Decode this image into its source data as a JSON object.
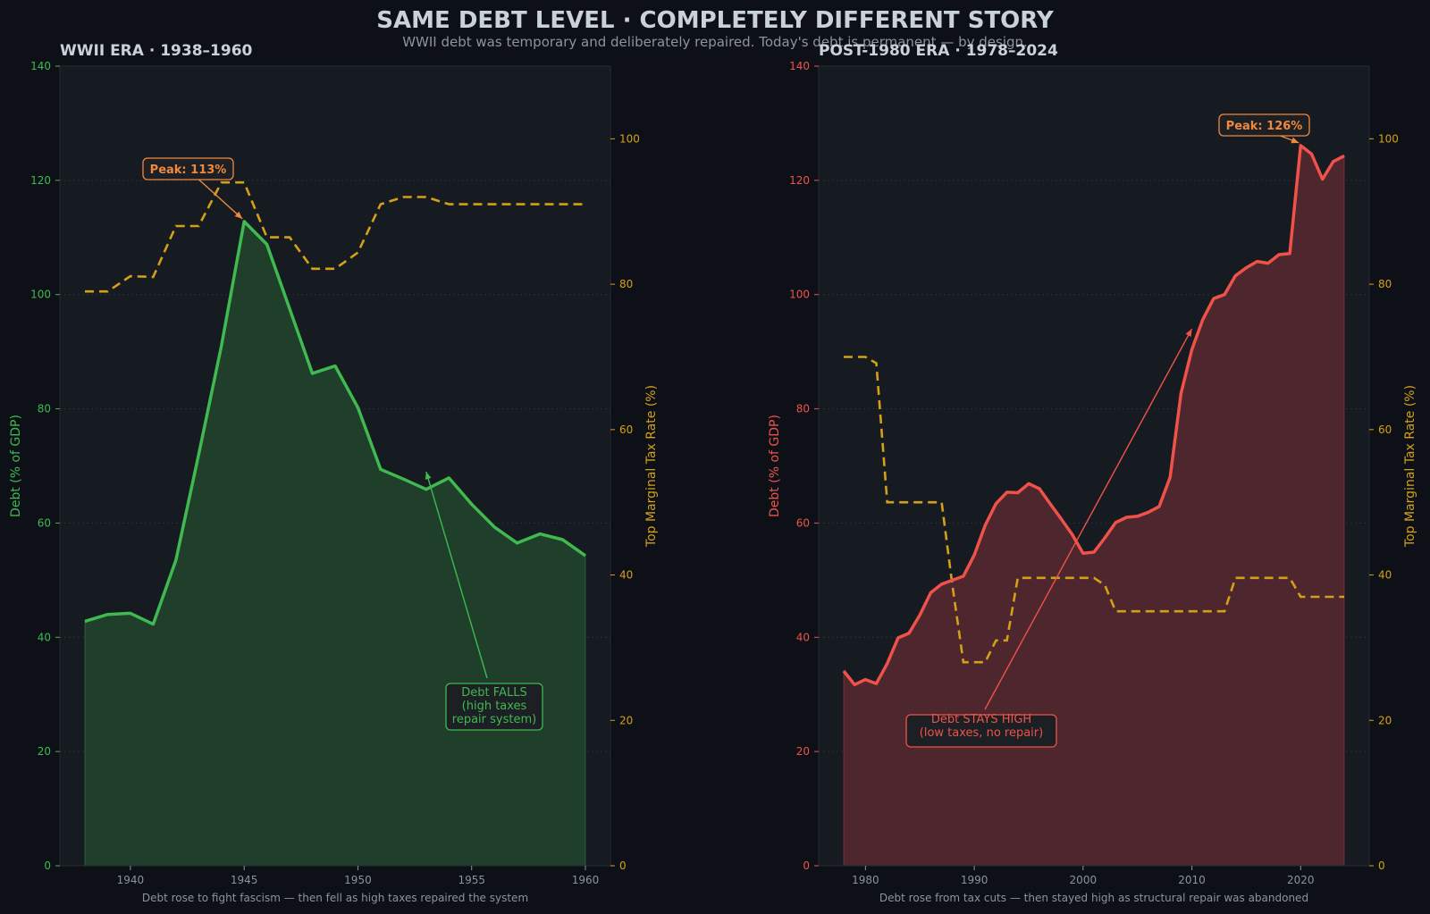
{
  "title": "SAME DEBT LEVEL  ·  COMPLETELY DIFFERENT STORY",
  "subtitle": "WWII debt was temporary and deliberately repaired. Today's debt is permanent — by design.",
  "colors": {
    "background": "#0d1117",
    "panel": "#161b22",
    "wwii_debt": "#3fb950",
    "modern_debt": "#f0524a",
    "tax": "#d4a017",
    "peak": "#f0883e",
    "text": "#c9d1d9",
    "muted": "#8b949e"
  },
  "chart_data": [
    {
      "type": "area",
      "title": "WWII ERA  ·  1938–1960",
      "caption": "Debt rose to fight fascism — then fell as high taxes repaired the system",
      "ylabel": "Debt (% of GDP)",
      "y2label": "Top Marginal Tax Rate (%)",
      "xlim": [
        1936.9,
        1961.1
      ],
      "xticks": [
        1940,
        1945,
        1950,
        1955,
        1960
      ],
      "ylim": [
        0,
        140
      ],
      "yticks": [
        0,
        20,
        40,
        60,
        80,
        100,
        120,
        140
      ],
      "y2lim": [
        0,
        110
      ],
      "y2ticks": [
        0,
        20,
        40,
        60,
        80,
        100
      ],
      "grid": true,
      "debt_series": {
        "x": [
          1938,
          1939,
          1940,
          1941,
          1942,
          1943,
          1944,
          1945,
          1946,
          1947,
          1948,
          1949,
          1950,
          1951,
          1952,
          1953,
          1954,
          1955,
          1956,
          1957,
          1958,
          1959,
          1960
        ],
        "values": [
          42.8,
          44.0,
          44.2,
          42.3,
          53.5,
          72.0,
          91.0,
          112.8,
          108.8,
          97.5,
          86.2,
          87.5,
          80.2,
          69.4,
          67.7,
          65.9,
          67.9,
          63.3,
          59.3,
          56.5,
          58.1,
          57.1,
          54.3
        ]
      },
      "tax_series": {
        "x": [
          1938,
          1939,
          1940,
          1941,
          1942,
          1943,
          1944,
          1945,
          1946,
          1947,
          1948,
          1949,
          1950,
          1951,
          1952,
          1953,
          1954,
          1955,
          1956,
          1957,
          1958,
          1959,
          1960
        ],
        "values": [
          79,
          79,
          81.1,
          81,
          88,
          88,
          94,
          94,
          86.45,
          86.45,
          82.13,
          82.13,
          84.36,
          91,
          92,
          92,
          91,
          91,
          91,
          91,
          91,
          91,
          91
        ]
      },
      "peak_label": "Peak: 113%",
      "peak_point": {
        "x": 1945,
        "y": 112.8
      },
      "trend_label_lines": [
        "Debt FALLS",
        "(high taxes",
        "repair system)"
      ],
      "trend_arrow_target": {
        "x": 1953,
        "y": 69
      }
    },
    {
      "type": "area",
      "title": "POST-1980 ERA  ·  1978–2024",
      "caption": "Debt rose from tax cuts — then stayed high as structural repair was abandoned",
      "ylabel": "Debt (% of GDP)",
      "y2label": "Top Marginal Tax Rate (%)",
      "xlim": [
        1975.7,
        2026.3
      ],
      "xticks": [
        1980,
        1990,
        2000,
        2010,
        2020
      ],
      "ylim": [
        0,
        140
      ],
      "yticks": [
        0,
        20,
        40,
        60,
        80,
        100,
        120,
        140
      ],
      "y2lim": [
        0,
        110
      ],
      "y2ticks": [
        0,
        20,
        40,
        60,
        80,
        100
      ],
      "grid": true,
      "debt_series": {
        "x": [
          1978,
          1979,
          1980,
          1981,
          1982,
          1983,
          1984,
          1985,
          1986,
          1987,
          1988,
          1989,
          1990,
          1991,
          1992,
          1993,
          1994,
          1995,
          1996,
          1997,
          1998,
          1999,
          2000,
          2001,
          2002,
          2003,
          2004,
          2005,
          2006,
          2007,
          2008,
          2009,
          2010,
          2011,
          2012,
          2013,
          2014,
          2015,
          2016,
          2017,
          2018,
          2019,
          2020,
          2021,
          2022,
          2023,
          2024
        ],
        "values": [
          34.1,
          31.7,
          32.6,
          31.9,
          35.4,
          39.9,
          40.7,
          43.9,
          47.8,
          49.3,
          50.0,
          50.7,
          54.4,
          59.6,
          63.4,
          65.4,
          65.3,
          66.9,
          66.0,
          63.3,
          60.7,
          58.0,
          54.7,
          54.9,
          57.4,
          60.1,
          61.0,
          61.2,
          61.9,
          62.9,
          68.0,
          82.7,
          90.4,
          95.6,
          99.3,
          100.0,
          103.3,
          104.7,
          105.8,
          105.5,
          107.0,
          107.2,
          126.1,
          124.6,
          120.2,
          123.3,
          124.3
        ]
      },
      "tax_series": {
        "x": [
          1978,
          1979,
          1980,
          1981,
          1982,
          1983,
          1984,
          1985,
          1986,
          1987,
          1988,
          1989,
          1990,
          1991,
          1992,
          1993,
          1994,
          1995,
          1996,
          1997,
          1998,
          1999,
          2000,
          2001,
          2002,
          2003,
          2004,
          2005,
          2006,
          2007,
          2008,
          2009,
          2010,
          2011,
          2012,
          2013,
          2014,
          2015,
          2016,
          2017,
          2018,
          2019,
          2020,
          2021,
          2022,
          2023,
          2024
        ],
        "values": [
          70,
          70,
          70,
          69.13,
          50,
          50,
          50,
          50,
          50,
          50,
          38.5,
          28,
          28,
          28,
          31,
          31,
          39.6,
          39.6,
          39.6,
          39.6,
          39.6,
          39.6,
          39.6,
          39.6,
          38.6,
          35,
          35,
          35,
          35,
          35,
          35,
          35,
          35,
          35,
          35,
          35,
          39.6,
          39.6,
          39.6,
          39.6,
          39.6,
          39.6,
          37,
          37,
          37,
          37,
          37
        ]
      },
      "peak_label": "Peak: 126%",
      "peak_point": {
        "x": 2020,
        "y": 126.1
      },
      "trend_label_lines": [
        "Debt STAYS HIGH",
        "(low taxes, no repair)"
      ],
      "trend_arrow_target": {
        "x": 2010,
        "y": 94
      }
    }
  ]
}
